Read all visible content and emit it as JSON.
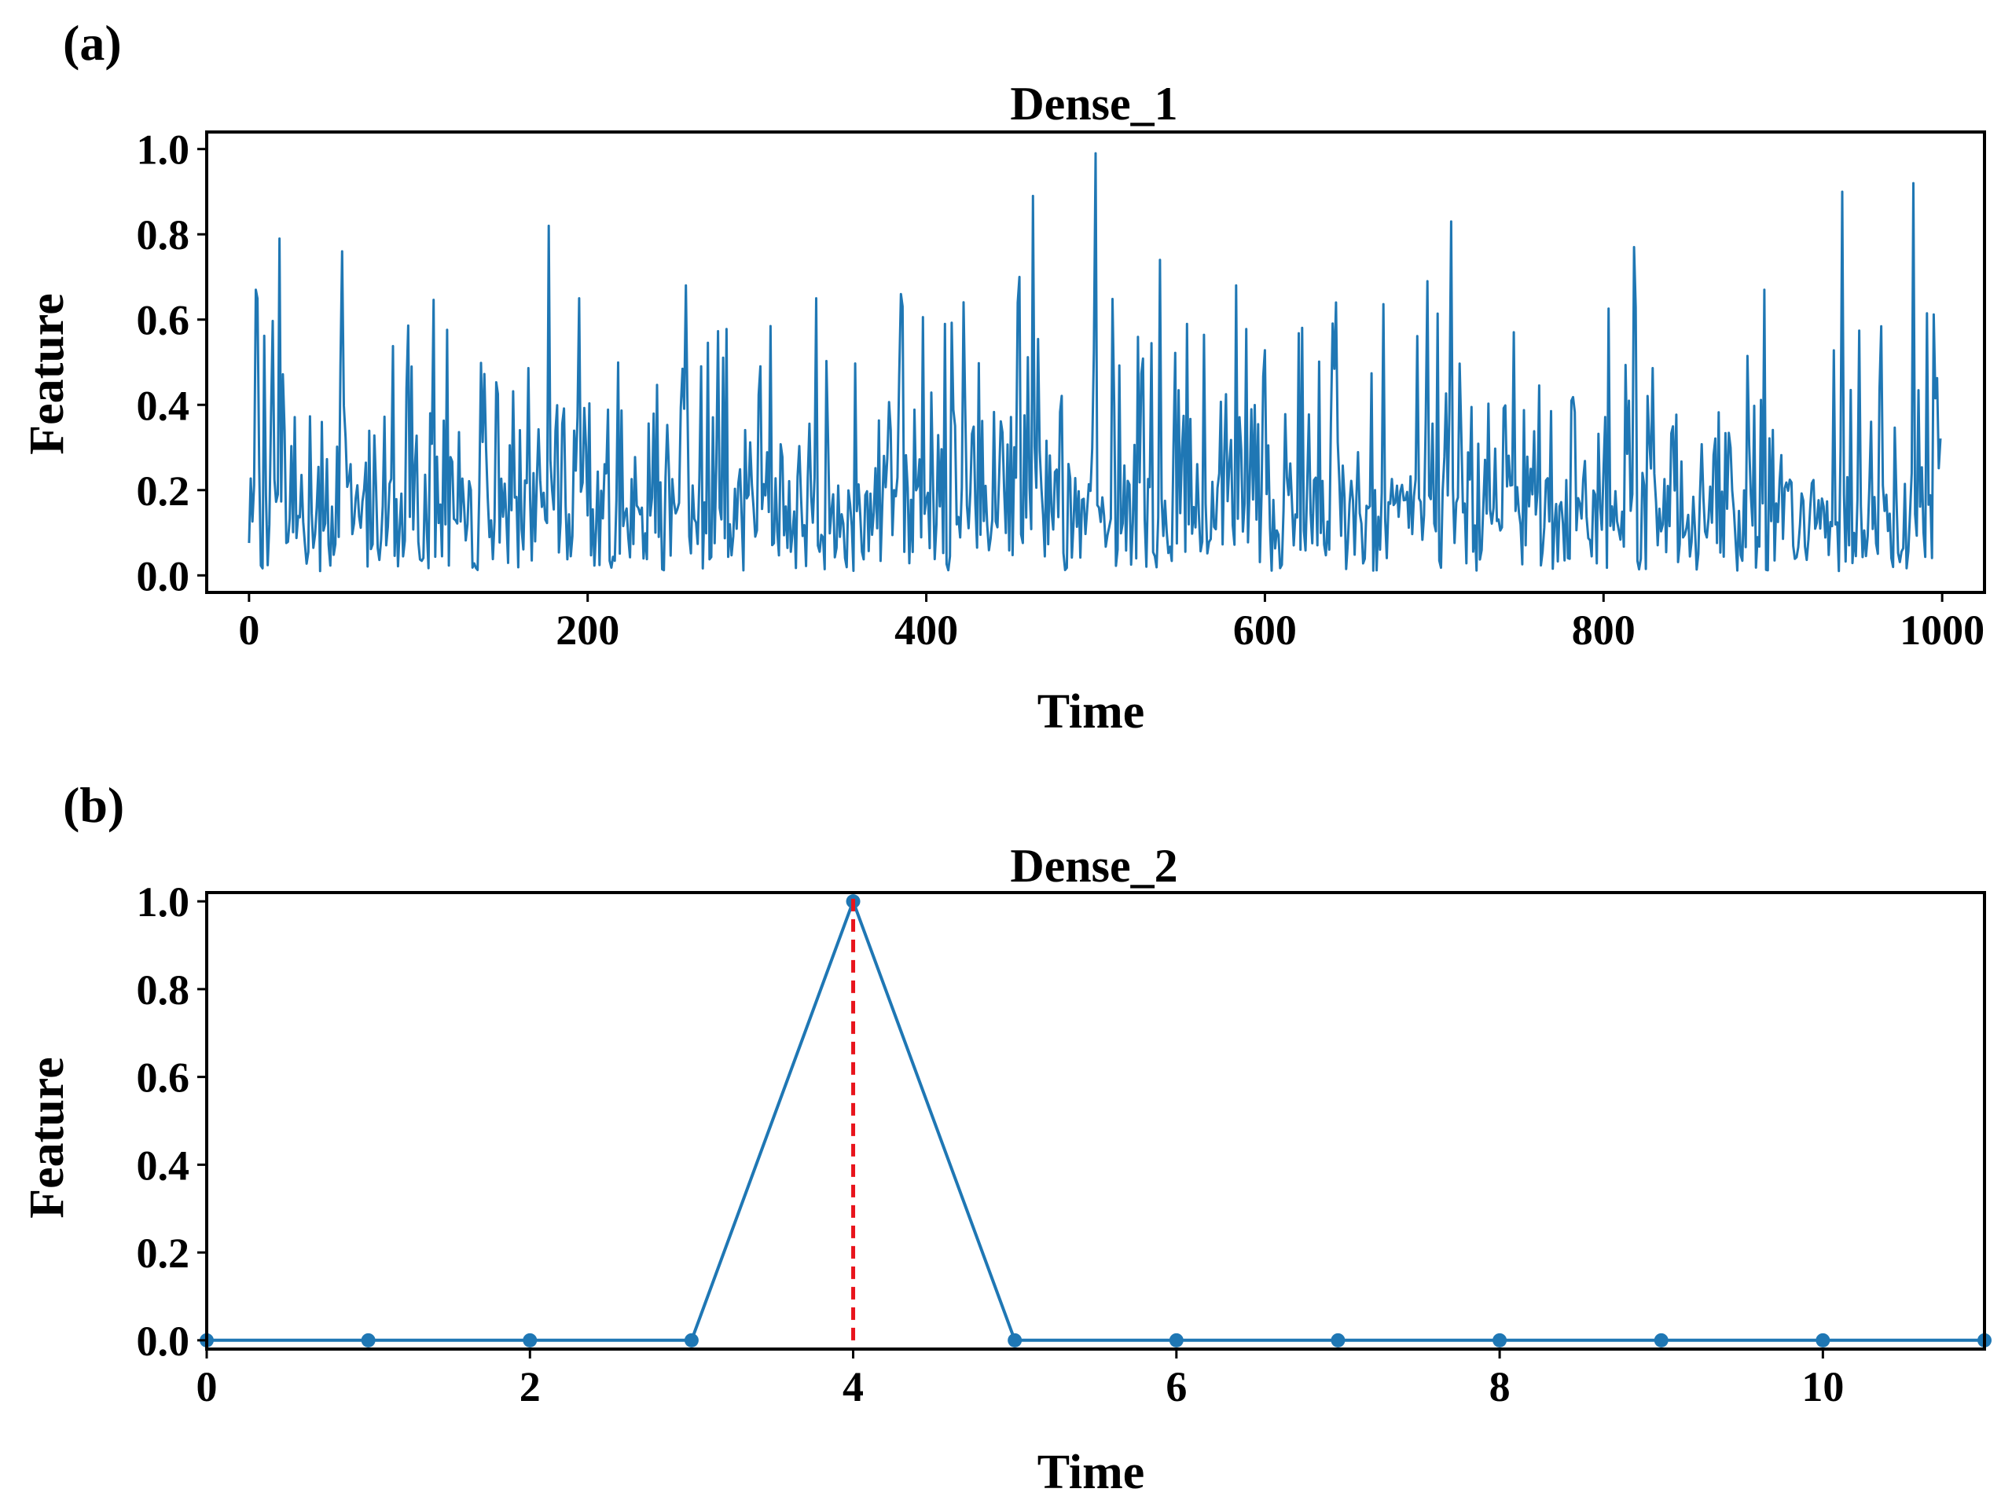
{
  "chart_data": [
    {
      "panel_label": "(a)",
      "type": "line",
      "title": "Dense_1",
      "xlabel": "Time",
      "ylabel": "Feature",
      "xlim": [
        -25,
        1025
      ],
      "ylim": [
        -0.04,
        1.04
      ],
      "xticks": [
        0,
        200,
        400,
        600,
        800,
        1000
      ],
      "xtick_labels": [
        "0",
        "200",
        "400",
        "600",
        "800",
        "1000"
      ],
      "yticks": [
        0.0,
        0.2,
        0.4,
        0.6,
        0.8,
        1.0
      ],
      "ytick_labels": [
        "0.0",
        "0.2",
        "0.4",
        "0.6",
        "0.8",
        "1.0"
      ],
      "grid": false,
      "series": [
        {
          "color": "#1f77b4",
          "x_start": 0,
          "x_step": 1,
          "n_points": 1000,
          "baseline": 0.15,
          "values_note": "dense noisy signal in [0,1]; notable peaks listed",
          "peaks": [
            {
              "x": 4,
              "y": 0.67
            },
            {
              "x": 18,
              "y": 0.79
            },
            {
              "x": 55,
              "y": 0.76
            },
            {
              "x": 177,
              "y": 0.82
            },
            {
              "x": 195,
              "y": 0.65
            },
            {
              "x": 258,
              "y": 0.68
            },
            {
              "x": 335,
              "y": 0.65
            },
            {
              "x": 385,
              "y": 0.66
            },
            {
              "x": 455,
              "y": 0.7
            },
            {
              "x": 463,
              "y": 0.89
            },
            {
              "x": 500,
              "y": 0.99
            },
            {
              "x": 538,
              "y": 0.74
            },
            {
              "x": 583,
              "y": 0.68
            },
            {
              "x": 642,
              "y": 0.64
            },
            {
              "x": 696,
              "y": 0.69
            },
            {
              "x": 710,
              "y": 0.83
            },
            {
              "x": 818,
              "y": 0.77
            },
            {
              "x": 895,
              "y": 0.67
            },
            {
              "x": 941,
              "y": 0.9
            },
            {
              "x": 983,
              "y": 0.92
            }
          ]
        }
      ]
    },
    {
      "panel_label": "(b)",
      "type": "line",
      "title": "Dense_2",
      "xlabel": "Time",
      "ylabel": "Feature",
      "xlim": [
        0,
        11
      ],
      "ylim": [
        -0.02,
        1.02
      ],
      "xticks": [
        0,
        2,
        4,
        6,
        8,
        10
      ],
      "xtick_labels": [
        "0",
        "2",
        "4",
        "6",
        "8",
        "10"
      ],
      "yticks": [
        0.0,
        0.2,
        0.4,
        0.6,
        0.8,
        1.0
      ],
      "ytick_labels": [
        "0.0",
        "0.2",
        "0.4",
        "0.6",
        "0.8",
        "1.0"
      ],
      "grid": false,
      "series": [
        {
          "color": "#1f77b4",
          "marker": "circle",
          "x": [
            0,
            1,
            2,
            3,
            4,
            5,
            6,
            7,
            8,
            9,
            10,
            11
          ],
          "y": [
            0,
            0,
            0,
            0,
            1.0,
            0,
            0,
            0,
            0,
            0,
            0,
            0
          ]
        }
      ],
      "vline": {
        "x": 4,
        "y_from": 0,
        "y_to": 1.02,
        "color": "#e8141c",
        "style": "dashed"
      }
    }
  ]
}
